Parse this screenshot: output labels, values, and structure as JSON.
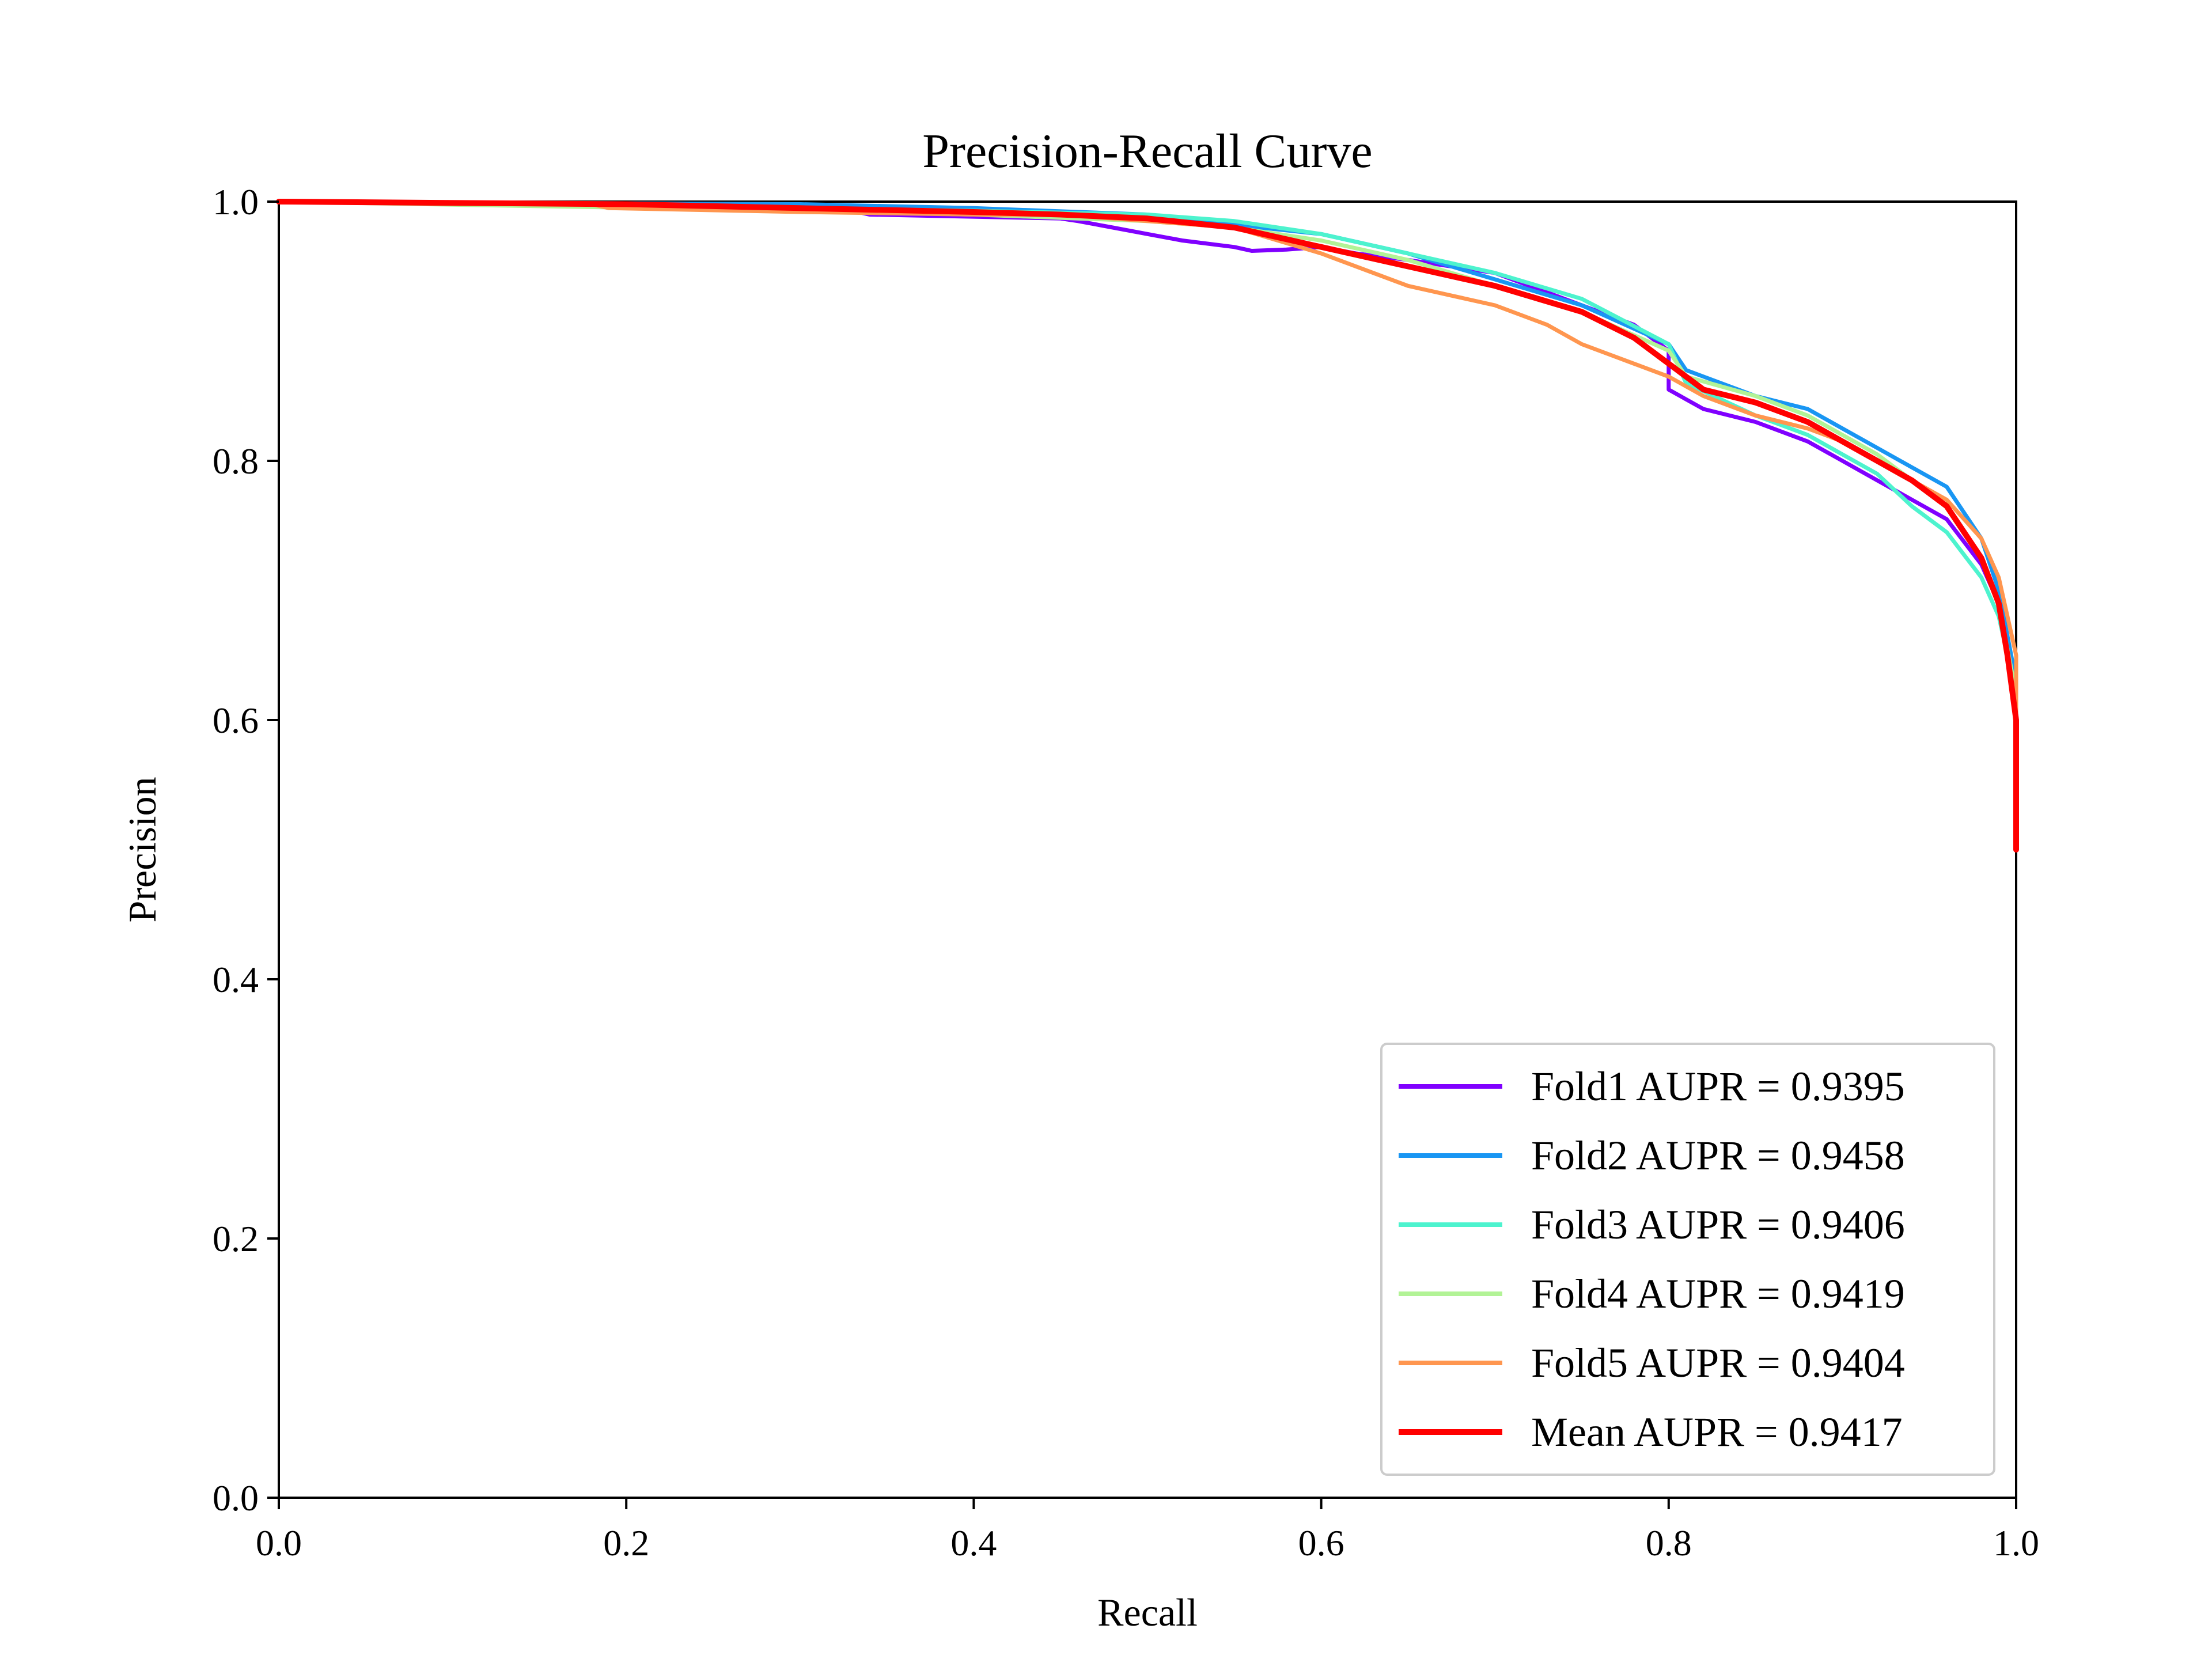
{
  "chart_data": {
    "type": "line",
    "title": "Precision-Recall Curve",
    "xlabel": "Recall",
    "ylabel": "Precision",
    "xlim": [
      0.0,
      1.0
    ],
    "ylim": [
      0.0,
      1.0
    ],
    "xticks": [
      "0.0",
      "0.2",
      "0.4",
      "0.6",
      "0.8",
      "1.0"
    ],
    "yticks": [
      "0.0",
      "0.2",
      "0.4",
      "0.6",
      "0.8",
      "1.0"
    ],
    "grid": false,
    "legend_position": "lower right",
    "series": [
      {
        "name": "Fold1 AUPR = 0.9395",
        "color": "#8000ff",
        "width": "thin",
        "x": [
          0.0,
          0.25,
          0.33,
          0.34,
          0.45,
          0.46,
          0.48,
          0.5,
          0.52,
          0.55,
          0.56,
          0.58,
          0.6,
          0.62,
          0.65,
          0.7,
          0.74,
          0.78,
          0.8,
          0.8,
          0.82,
          0.85,
          0.88,
          0.9,
          0.92,
          0.94,
          0.96,
          0.98,
          0.99,
          1.0,
          1.0
        ],
        "y": [
          1.0,
          0.995,
          0.993,
          0.99,
          0.987,
          0.985,
          0.98,
          0.975,
          0.97,
          0.965,
          0.962,
          0.963,
          0.965,
          0.96,
          0.955,
          0.945,
          0.925,
          0.905,
          0.885,
          0.855,
          0.84,
          0.83,
          0.815,
          0.8,
          0.785,
          0.77,
          0.755,
          0.72,
          0.69,
          0.62,
          0.5
        ]
      },
      {
        "name": "Fold2 AUPR = 0.9458",
        "color": "#1996f3",
        "width": "thin",
        "x": [
          0.0,
          0.3,
          0.4,
          0.5,
          0.53,
          0.6,
          0.65,
          0.7,
          0.75,
          0.8,
          0.81,
          0.85,
          0.88,
          0.9,
          0.92,
          0.94,
          0.96,
          0.98,
          0.99,
          1.0,
          1.0
        ],
        "y": [
          1.0,
          0.998,
          0.995,
          0.99,
          0.985,
          0.975,
          0.96,
          0.94,
          0.92,
          0.89,
          0.87,
          0.85,
          0.84,
          0.825,
          0.81,
          0.795,
          0.78,
          0.74,
          0.7,
          0.63,
          0.53
        ]
      },
      {
        "name": "Fold3 AUPR = 0.9406",
        "color": "#4df3ce",
        "width": "thin",
        "x": [
          0.0,
          0.3,
          0.4,
          0.5,
          0.55,
          0.6,
          0.65,
          0.7,
          0.75,
          0.8,
          0.81,
          0.85,
          0.88,
          0.9,
          0.92,
          0.94,
          0.96,
          0.98,
          0.99,
          1.0,
          1.0
        ],
        "y": [
          1.0,
          0.995,
          0.993,
          0.99,
          0.985,
          0.975,
          0.96,
          0.945,
          0.925,
          0.89,
          0.86,
          0.835,
          0.82,
          0.805,
          0.79,
          0.765,
          0.745,
          0.71,
          0.68,
          0.62,
          0.5
        ]
      },
      {
        "name": "Fold4 AUPR = 0.9419",
        "color": "#b2f396",
        "width": "thin",
        "x": [
          0.0,
          0.3,
          0.4,
          0.5,
          0.55,
          0.6,
          0.65,
          0.7,
          0.75,
          0.8,
          0.81,
          0.85,
          0.88,
          0.9,
          0.92,
          0.94,
          0.96,
          0.98,
          0.99,
          1.0,
          1.0
        ],
        "y": [
          1.0,
          0.993,
          0.99,
          0.985,
          0.98,
          0.97,
          0.955,
          0.935,
          0.915,
          0.885,
          0.865,
          0.85,
          0.835,
          0.82,
          0.805,
          0.785,
          0.765,
          0.725,
          0.69,
          0.62,
          0.5
        ]
      },
      {
        "name": "Fold5 AUPR = 0.9404",
        "color": "#ff964f",
        "width": "thin",
        "x": [
          0.0,
          0.18,
          0.19,
          0.3,
          0.4,
          0.45,
          0.5,
          0.55,
          0.6,
          0.63,
          0.65,
          0.7,
          0.73,
          0.75,
          0.78,
          0.8,
          0.82,
          0.85,
          0.88,
          0.9,
          0.92,
          0.94,
          0.96,
          0.98,
          0.99,
          1.0,
          1.0
        ],
        "y": [
          1.0,
          0.998,
          0.995,
          0.992,
          0.99,
          0.99,
          0.985,
          0.98,
          0.96,
          0.945,
          0.935,
          0.92,
          0.905,
          0.89,
          0.875,
          0.865,
          0.85,
          0.835,
          0.825,
          0.815,
          0.8,
          0.785,
          0.77,
          0.74,
          0.71,
          0.65,
          0.59
        ]
      },
      {
        "name": "Mean AUPR = 0.9417",
        "color": "#ff0000",
        "width": "thick",
        "x": [
          0.0,
          0.2,
          0.3,
          0.4,
          0.45,
          0.5,
          0.55,
          0.6,
          0.65,
          0.7,
          0.75,
          0.78,
          0.8,
          0.82,
          0.85,
          0.88,
          0.9,
          0.92,
          0.94,
          0.96,
          0.98,
          0.99,
          0.995,
          1.0,
          1.0
        ],
        "y": [
          1.0,
          0.998,
          0.995,
          0.992,
          0.99,
          0.987,
          0.98,
          0.965,
          0.95,
          0.935,
          0.915,
          0.895,
          0.875,
          0.855,
          0.845,
          0.83,
          0.815,
          0.8,
          0.785,
          0.765,
          0.725,
          0.69,
          0.65,
          0.6,
          0.5
        ]
      }
    ]
  }
}
